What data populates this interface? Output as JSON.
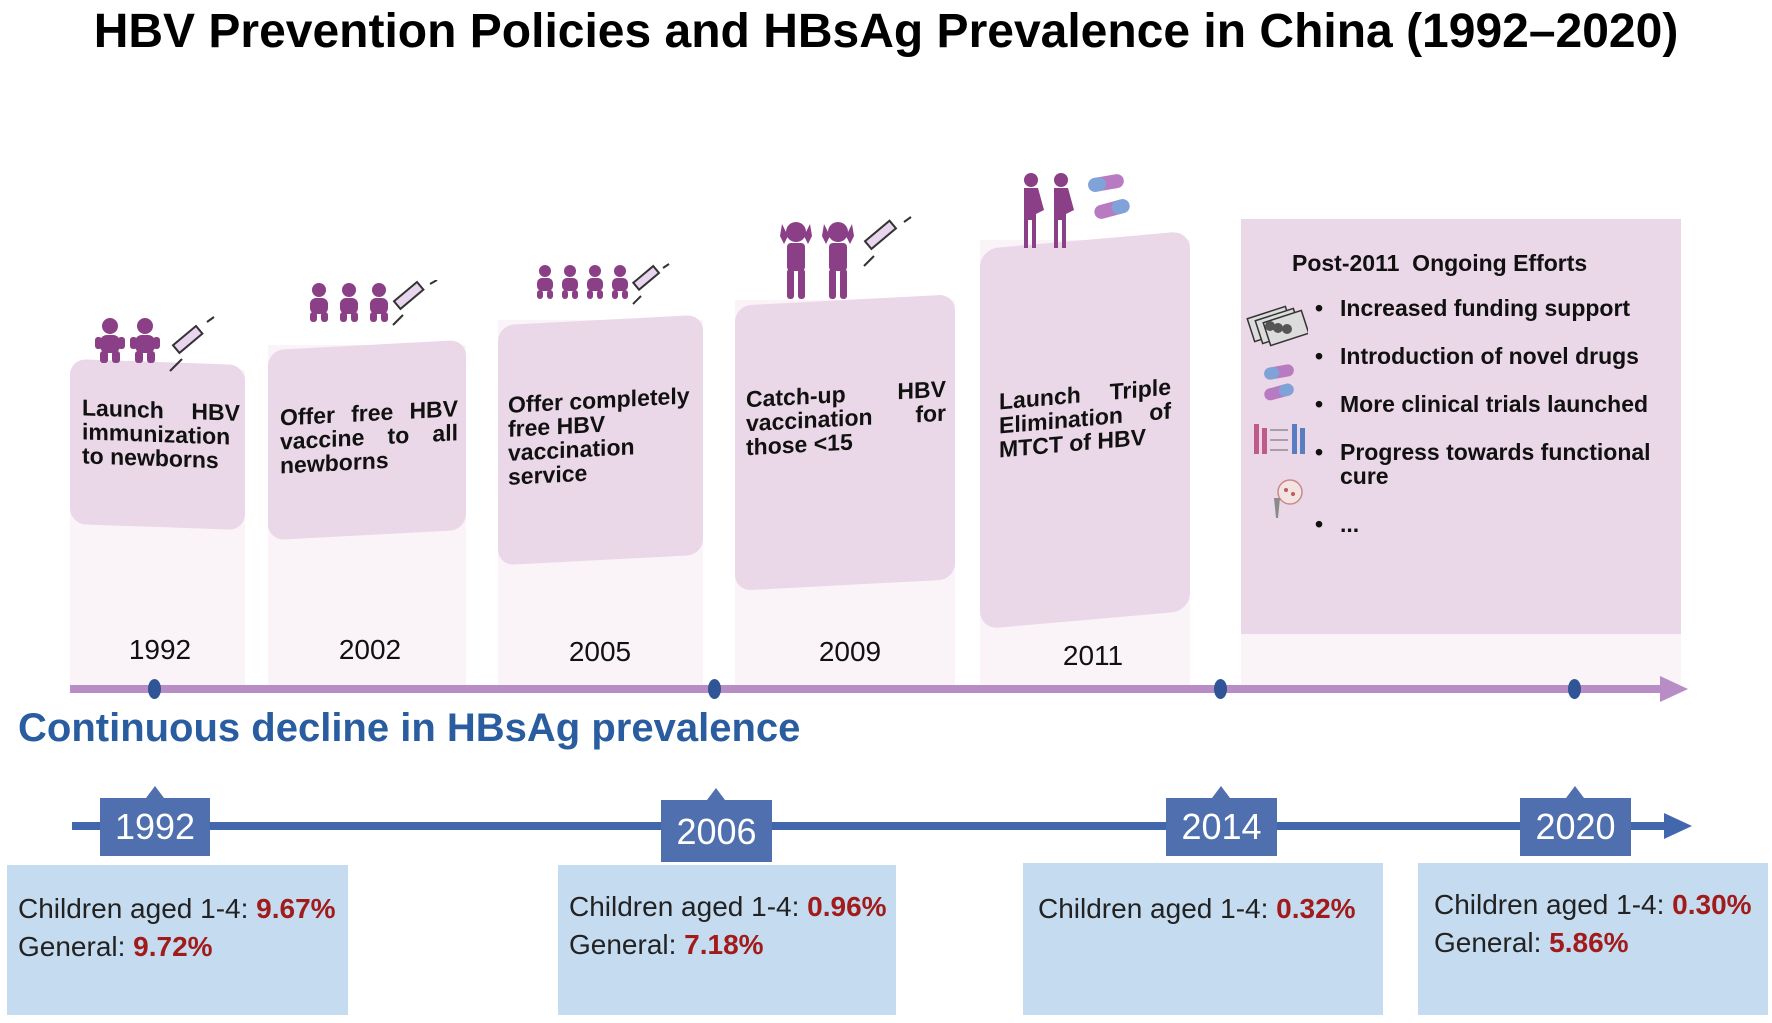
{
  "title": "HBV Prevention Policies and HBsAg Prevalence in China (1992–2020)",
  "policies": [
    {
      "year": "1992",
      "lines": [
        "Launch HBV",
        "immunization",
        "to newborns"
      ]
    },
    {
      "year": "2002",
      "lines": [
        "Offer free HBV",
        "vaccine to all",
        "newborns"
      ]
    },
    {
      "year": "2005",
      "lines": [
        "Offer completely",
        "free HBV",
        "vaccination",
        "service"
      ]
    },
    {
      "year": "2009",
      "lines": [
        "Catch-up HBV",
        "vaccination for",
        "those <15"
      ]
    },
    {
      "year": "2011",
      "lines": [
        "Launch Triple",
        "Elimination of",
        "MTCT of HBV"
      ]
    }
  ],
  "post2011": {
    "title": "Post-2011  Ongoing Efforts",
    "items": [
      "Increased funding support",
      "Introduction of novel drugs",
      "More clinical trials launched",
      "Progress towards functional cure",
      "..."
    ]
  },
  "decline_heading": "Continuous decline in HBsAg prevalence",
  "prevalence": [
    {
      "year": "1992",
      "children_label": "Children aged 1-4: ",
      "children_value": "9.67%",
      "general_label": "General: ",
      "general_value": "9.72%"
    },
    {
      "year": "2006",
      "children_label": "Children aged 1-4: ",
      "children_value": "0.96%",
      "general_label": "General: ",
      "general_value": "7.18%"
    },
    {
      "year": "2014",
      "children_label": "Children aged 1-4: ",
      "children_value": "0.32%",
      "general_label": "",
      "general_value": ""
    },
    {
      "year": "2020",
      "children_label": "Children aged 1-4: ",
      "children_value": "0.30%",
      "general_label": "General: ",
      "general_value": "5.86%"
    }
  ],
  "colors": {
    "card": "#ead7e7",
    "icon": "#8a3f86",
    "purple_line": "#b88cc4",
    "blue_line": "#4267ad",
    "stat_box": "#c5dcf0",
    "value_red": "#a11b1b",
    "heading_blue": "#2a5d9f"
  }
}
